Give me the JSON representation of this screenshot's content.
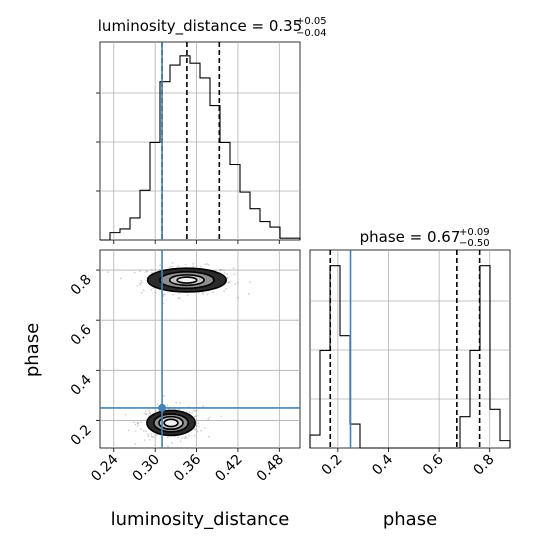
{
  "chart_data": {
    "type": "corner",
    "truth_color": "#4682b4",
    "line_color": "#000000",
    "parameters": [
      {
        "name": "luminosity_distance",
        "xlabel": "luminosity_distance",
        "title": {
          "prefix": "luminosity_distance = ",
          "value": "0.35",
          "plus": "+0.05",
          "minus": "−0.04"
        },
        "quantiles": [
          0.31,
          0.346,
          0.393
        ],
        "truth": 0.31,
        "range": [
          0.22,
          0.51
        ],
        "ticks": [
          0.24,
          0.3,
          0.36,
          0.42,
          0.48
        ],
        "tick_labels": [
          "0.24",
          "0.30",
          "0.36",
          "0.42",
          "0.48"
        ],
        "histogram": {
          "bin_edges": [
            0.22,
            0.2345,
            0.249,
            0.2635,
            0.278,
            0.2925,
            0.307,
            0.3215,
            0.336,
            0.3505,
            0.365,
            0.3795,
            0.394,
            0.4085,
            0.423,
            0.4375,
            0.452,
            0.4665,
            0.481,
            0.4955,
            0.51
          ],
          "counts": [
            0.0,
            0.04,
            0.06,
            0.12,
            0.27,
            0.53,
            0.86,
            0.95,
            1.0,
            0.96,
            0.88,
            0.73,
            0.53,
            0.41,
            0.26,
            0.17,
            0.1,
            0.07,
            0.01,
            0.01
          ]
        }
      },
      {
        "name": "phase",
        "xlabel": "phase",
        "ylabel": "phase",
        "title": {
          "prefix": "phase = ",
          "value": "0.67",
          "plus": "+0.09",
          "minus": "−0.50"
        },
        "quantiles": [
          0.17,
          0.67,
          0.76
        ],
        "truth": 0.25,
        "range": [
          0.09,
          0.88
        ],
        "ticks": [
          0.2,
          0.4,
          0.6,
          0.8
        ],
        "tick_labels": [
          "0.2",
          "0.4",
          "0.6",
          "0.8"
        ],
        "histogram": {
          "bin_edges": [
            0.09,
            0.1295,
            0.169,
            0.2085,
            0.248,
            0.2875,
            0.327,
            0.3665,
            0.406,
            0.4455,
            0.485,
            0.5245,
            0.564,
            0.6035,
            0.643,
            0.6825,
            0.722,
            0.7615,
            0.801,
            0.8405,
            0.88
          ],
          "counts": [
            0.07,
            0.53,
            0.99,
            0.61,
            0.13,
            0.0,
            0.0,
            0.0,
            0.0,
            0.0,
            0.0,
            0.0,
            0.0,
            0.0,
            0.0,
            0.17,
            0.53,
            0.99,
            0.21,
            0.04
          ]
        }
      }
    ],
    "joint": {
      "x": "luminosity_distance",
      "y": "phase",
      "modes": [
        {
          "center": [
            0.346,
            0.76
          ],
          "spread": [
            0.03,
            0.025
          ],
          "levels": [
            0.016,
            0.011,
            0.007,
            0.004
          ]
        },
        {
          "center": [
            0.323,
            0.19
          ],
          "spread": [
            0.021,
            0.03
          ],
          "levels": [
            0.014,
            0.01,
            0.007,
            0.004
          ]
        }
      ],
      "truth_point": [
        0.31,
        0.25
      ]
    }
  }
}
